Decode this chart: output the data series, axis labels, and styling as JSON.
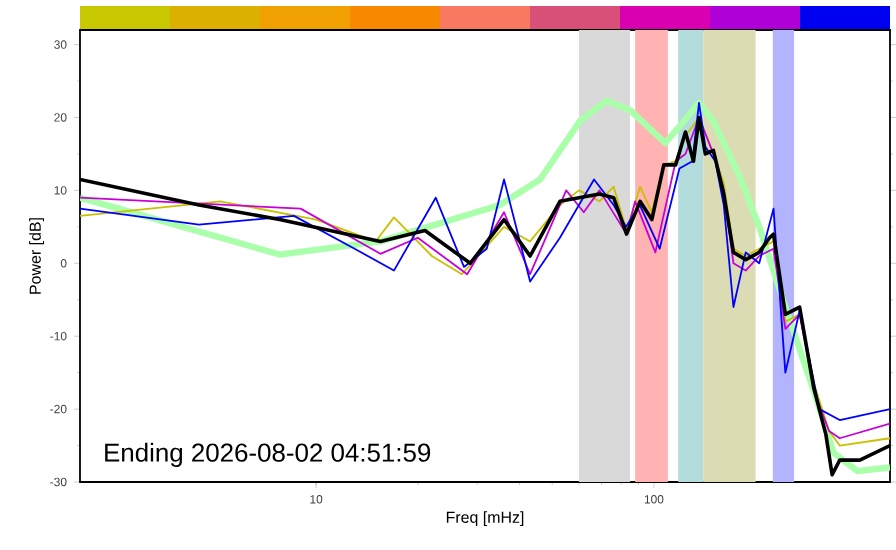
{
  "chart_data": {
    "type": "line",
    "xlabel": "Freq [mHz]",
    "ylabel": "Power [dB]",
    "log": "x",
    "xlim": [
      2,
      500
    ],
    "ylim": [
      -30,
      32
    ],
    "xticks": [
      10,
      100
    ],
    "yticks": [
      -30,
      -20,
      -10,
      0,
      10,
      20,
      30
    ],
    "annotations": [
      "Ending 2026-08-02 04:51:59"
    ],
    "bands": [
      {
        "axis": "x",
        "from": 60,
        "to": 85,
        "color": "#d9d9d9"
      },
      {
        "axis": "x",
        "from": 88,
        "to": 110,
        "color": "#ffb3b3"
      },
      {
        "axis": "x",
        "from": 118,
        "to": 140,
        "color": "#b3dcdc"
      },
      {
        "axis": "x",
        "from": 140,
        "to": 200,
        "color": "#dcdcb4"
      },
      {
        "axis": "x",
        "from": 225,
        "to": 260,
        "color": "#b3b3ff"
      }
    ],
    "series": [
      {
        "color": "#aaffaa",
        "x": [
          2,
          7.8,
          15.5,
          35,
          46,
          60.4,
          72.3,
          85,
          108,
          128,
          136,
          150,
          179,
          205,
          245,
          300,
          340,
          400,
          500
        ],
        "values": [
          9,
          1.2,
          3,
          8,
          11.5,
          19.5,
          22.3,
          21,
          16.5,
          20.5,
          22,
          19.5,
          12,
          5,
          -6,
          -18,
          -26,
          -28.5,
          -28
        ]
      },
      {
        "color": "#c8c000",
        "x": [
          2,
          5.2,
          10,
          15,
          17,
          22,
          27,
          36,
          43,
          52.7,
          60,
          69,
          76,
          83,
          91,
          98.6,
          107,
          116,
          124,
          136,
          150,
          161,
          172,
          187,
          205,
          226,
          245,
          270,
          300,
          330,
          355,
          500
        ],
        "values": [
          6.5,
          8.5,
          6,
          3,
          6.3,
          1,
          -1.5,
          5,
          3,
          8,
          10,
          8.5,
          10.5,
          4.5,
          10.5,
          7,
          13.5,
          14,
          17.5,
          20,
          15,
          11,
          2,
          1,
          2,
          3,
          -8,
          -7,
          -17,
          -23,
          -25,
          -24
        ]
      },
      {
        "color": "#c800d8",
        "x": [
          2,
          9,
          15.5,
          20,
          28,
          36,
          43,
          55,
          62,
          69,
          83,
          88,
          101,
          116,
          124,
          136,
          150,
          161,
          172,
          187,
          205,
          226,
          245,
          270,
          300,
          330,
          355,
          500
        ],
        "values": [
          9,
          7.5,
          1.3,
          3.5,
          -1.5,
          7,
          -1.5,
          10,
          7,
          10,
          4,
          8.5,
          1.5,
          14,
          15,
          20,
          15,
          10,
          0,
          -1,
          1,
          2,
          -9,
          -7,
          -18,
          -23,
          -24,
          -22
        ]
      },
      {
        "color": "#0000ff",
        "x": [
          2,
          4.5,
          8.6,
          13,
          17,
          22.6,
          27.4,
          32,
          36,
          43,
          52.7,
          60,
          66.5,
          76,
          82.7,
          90.8,
          104,
          119,
          130,
          136,
          142,
          152,
          161,
          172,
          187,
          205,
          226,
          245,
          270,
          309,
          355,
          500
        ],
        "values": [
          7.5,
          5.3,
          6.5,
          2,
          -1,
          9,
          -0.5,
          2,
          11.5,
          -2.5,
          3.5,
          8,
          11.5,
          8,
          5,
          8,
          2,
          13,
          14,
          22,
          16,
          14,
          8,
          -6,
          1.5,
          0,
          7.5,
          -15,
          -6.5,
          -20,
          -21.5,
          -20
        ]
      },
      {
        "color": "#000000",
        "x": [
          2,
          4.5,
          7.8,
          15.5,
          21,
          28.6,
          36,
          43,
          52.7,
          69,
          76,
          83,
          91,
          98.6,
          107,
          116,
          124,
          131,
          136,
          142,
          150,
          161,
          172,
          187,
          205,
          220,
          226,
          245,
          270,
          297,
          323,
          337,
          355,
          407,
          500
        ],
        "values": [
          11.5,
          8,
          6,
          3,
          4.5,
          0,
          6,
          1,
          8.5,
          9.5,
          9,
          4,
          8.5,
          6,
          13.5,
          13.5,
          18,
          14,
          20,
          15,
          15.5,
          9.5,
          1.5,
          0.5,
          1.5,
          3.5,
          4,
          -7,
          -6,
          -17,
          -23.5,
          -29,
          -27,
          -27,
          -25
        ]
      }
    ]
  }
}
